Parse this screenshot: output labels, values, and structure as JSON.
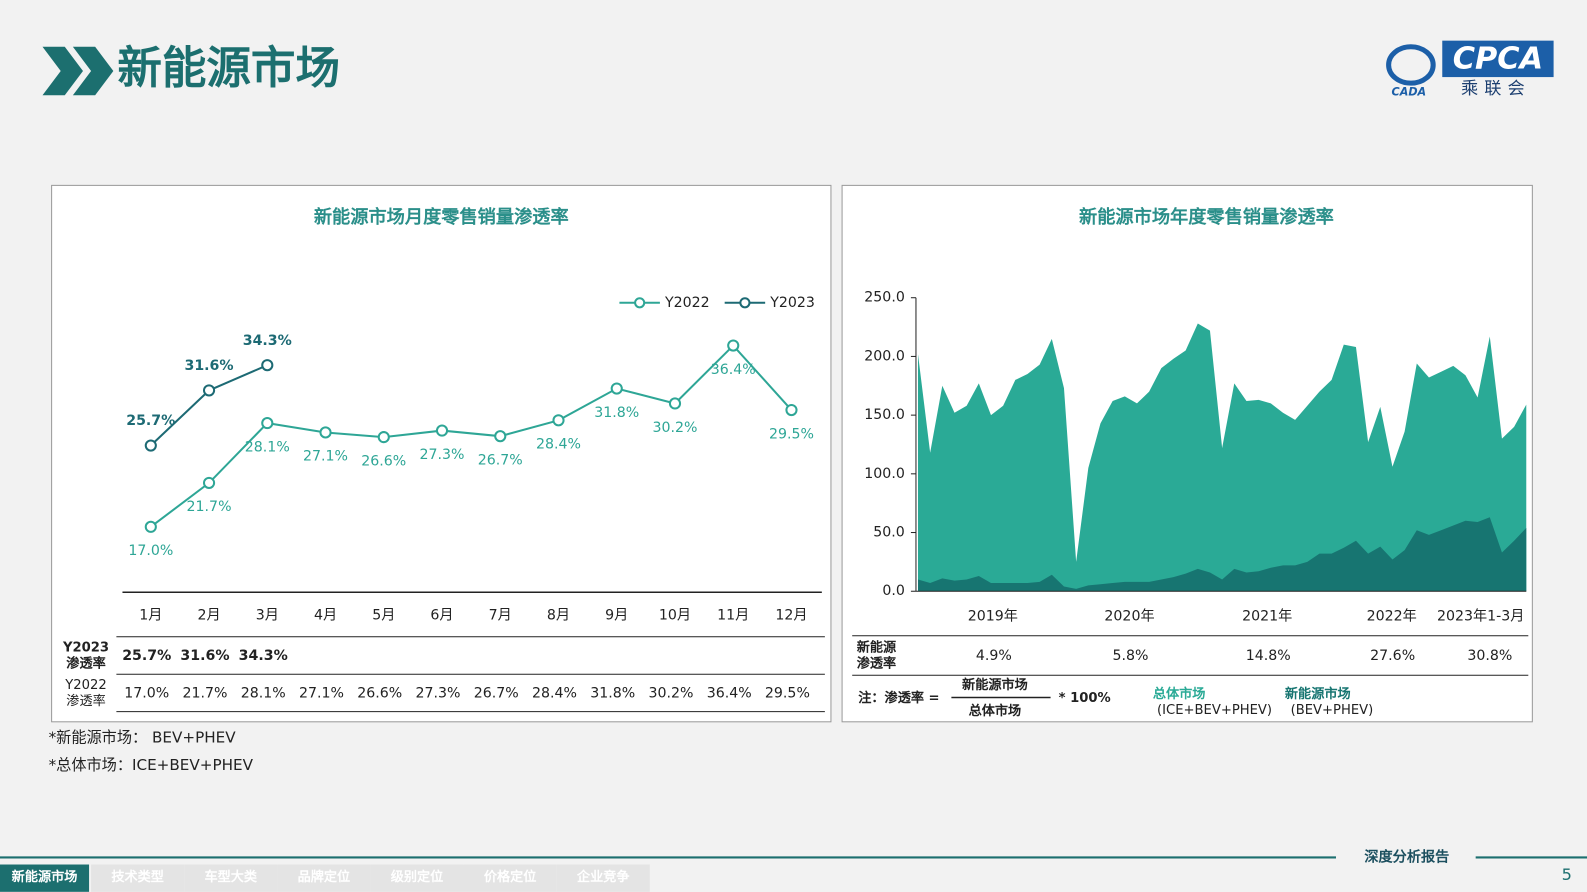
{
  "header": {
    "title": "新能源市场",
    "logo": {
      "brand": "CPCA",
      "name": "乘联会",
      "sub": "CADA"
    }
  },
  "chart_data": [
    {
      "type": "line",
      "title": "新能源市场月度零售销量渗透率",
      "categories": [
        "1月",
        "2月",
        "3月",
        "4月",
        "5月",
        "6月",
        "7月",
        "8月",
        "9月",
        "10月",
        "11月",
        "12月"
      ],
      "series": [
        {
          "name": "Y2022",
          "color": "#2ea696",
          "values": [
            17.0,
            21.7,
            28.1,
            27.1,
            26.6,
            27.3,
            26.7,
            28.4,
            31.8,
            30.2,
            36.4,
            29.5
          ],
          "value_labels": [
            "17.0%",
            "21.7%",
            "28.1%",
            "27.1%",
            "26.6%",
            "27.3%",
            "26.7%",
            "28.4%",
            "31.8%",
            "30.2%",
            "36.4%",
            "29.5%"
          ]
        },
        {
          "name": "Y2023",
          "color": "#1d6a74",
          "values": [
            25.7,
            31.6,
            34.3,
            null,
            null,
            null,
            null,
            null,
            null,
            null,
            null,
            null
          ],
          "value_labels": [
            "25.7%",
            "31.6%",
            "34.3%",
            null,
            null,
            null,
            null,
            null,
            null,
            null,
            null,
            null
          ]
        }
      ],
      "ylim": [
        10,
        40
      ],
      "legend": "top-right"
    },
    {
      "type": "area",
      "title": "新能源市场年度零售销量渗透率",
      "series": [
        {
          "name": "总体市场",
          "color": "#2aaa96",
          "values": [
            202,
            118,
            175,
            152,
            158,
            177,
            150,
            158,
            180,
            185,
            193,
            215,
            173,
            25,
            105,
            143,
            162,
            166,
            160,
            170,
            190,
            198,
            205,
            228,
            222,
            122,
            177,
            162,
            163,
            160,
            152,
            146,
            158,
            170,
            180,
            210,
            208,
            127,
            157,
            106,
            136,
            194,
            182,
            187,
            192,
            184,
            165,
            217,
            130,
            140,
            159
          ]
        },
        {
          "name": "新能源市场",
          "color": "#177571",
          "values": [
            10,
            7,
            11,
            9,
            10,
            13,
            7,
            7,
            7,
            7,
            8,
            14,
            4,
            2,
            5,
            6,
            7,
            8,
            8,
            8,
            10,
            12,
            15,
            19,
            16,
            10,
            19,
            16,
            17,
            20,
            22,
            22,
            25,
            32,
            32,
            37,
            43,
            32,
            38,
            27,
            35,
            52,
            48,
            52,
            56,
            60,
            59,
            63,
            33,
            43,
            54
          ]
        }
      ],
      "ylim": [
        0,
        250
      ],
      "yticks": [
        {
          "value": 0,
          "label": "0.0"
        },
        {
          "value": 50,
          "label": "50.0"
        },
        {
          "value": 100,
          "label": "100.0"
        },
        {
          "value": 150,
          "label": "150.0"
        },
        {
          "value": 200,
          "label": "200.0"
        },
        {
          "value": 250,
          "label": "250.0"
        }
      ]
    }
  ],
  "monthly_table": {
    "row_labels": [
      [
        "Y2023",
        "渗透率"
      ],
      [
        "Y2022",
        "渗透率"
      ]
    ]
  },
  "annual_table": {
    "columns": [
      "2019年",
      "2020年",
      "2021年",
      "2022年",
      "2023年1-3月"
    ],
    "row_label": [
      "新能源",
      "渗透率"
    ],
    "values": [
      "4.9%",
      "5.8%",
      "14.8%",
      "27.6%",
      "30.8%"
    ]
  },
  "formula": {
    "prefix": "注：渗透率 =",
    "numerator": "新能源市场",
    "denominator": "总体市场",
    "suffix": "* 100%",
    "total_detail": "(ICE+BEV+PHEV)",
    "nev_detail": "(BEV+PHEV)"
  },
  "notes": [
    "*新能源市场： BEV+PHEV",
    "*总体市场：ICE+BEV+PHEV"
  ],
  "footer": {
    "report": "深度分析报告",
    "page": "5"
  },
  "nav": [
    "新能源市场",
    "技术类型",
    "车型大类",
    "品牌定位",
    "级别定位",
    "价格定位",
    "企业竞争"
  ]
}
